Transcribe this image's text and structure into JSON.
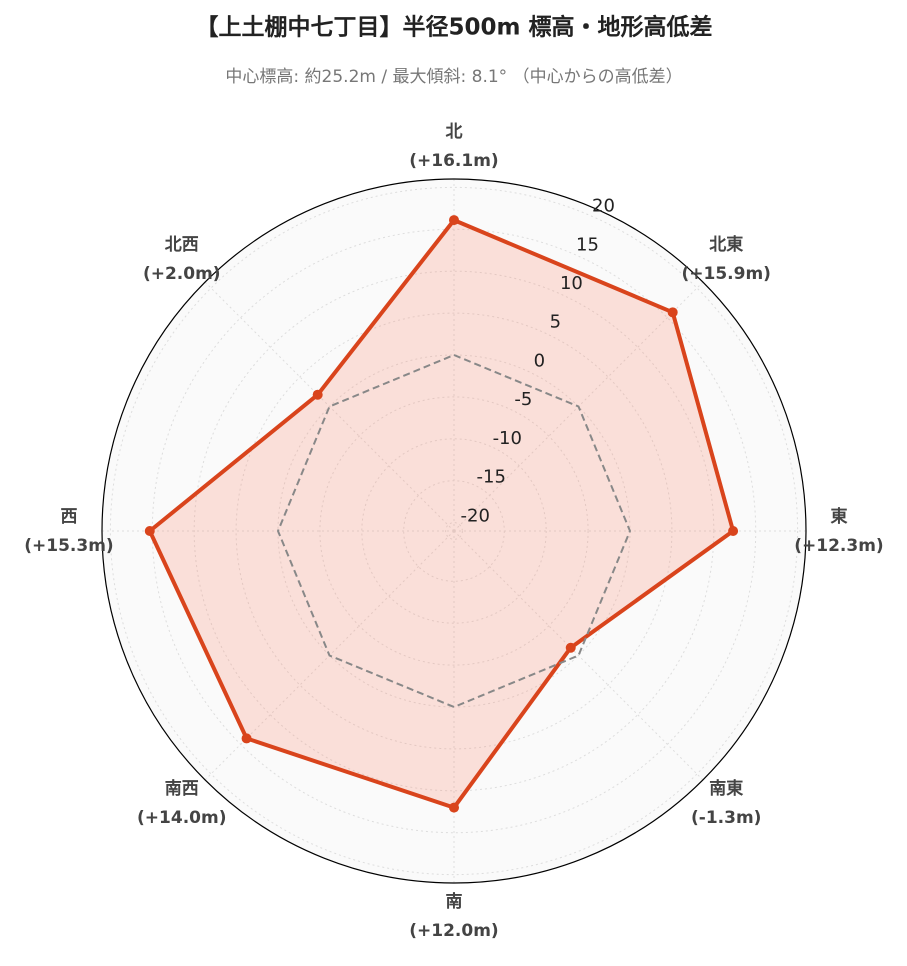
{
  "chart_data": {
    "type": "radar",
    "title": "【上土棚中七丁目】半径500m 標高・地形高低差",
    "subtitle": "中心標高: 約25.2m / 最大傾斜: 8.1° （中心からの高低差）",
    "categories": [
      "北",
      "北東",
      "東",
      "南東",
      "南",
      "南西",
      "西",
      "北西"
    ],
    "series": [
      {
        "color": "#d9441c",
        "values": [
          16.1,
          15.9,
          12.3,
          -1.3,
          12.0,
          14.0,
          15.3,
          2.0
        ],
        "value_labels": [
          "(+16.1m)",
          "(+15.9m)",
          "(+12.3m)",
          "(-1.3m)",
          "(+12.0m)",
          "(+14.0m)",
          "(+15.3m)",
          "(+2.0m)"
        ]
      },
      {
        "color": "#888888",
        "values": [
          0,
          0,
          0,
          0,
          0,
          0,
          0,
          0
        ]
      }
    ],
    "rlim": [
      -21,
      21
    ],
    "rticks": [
      -20,
      -15,
      -10,
      -5,
      0,
      5,
      10,
      15,
      20
    ],
    "grid": true
  }
}
